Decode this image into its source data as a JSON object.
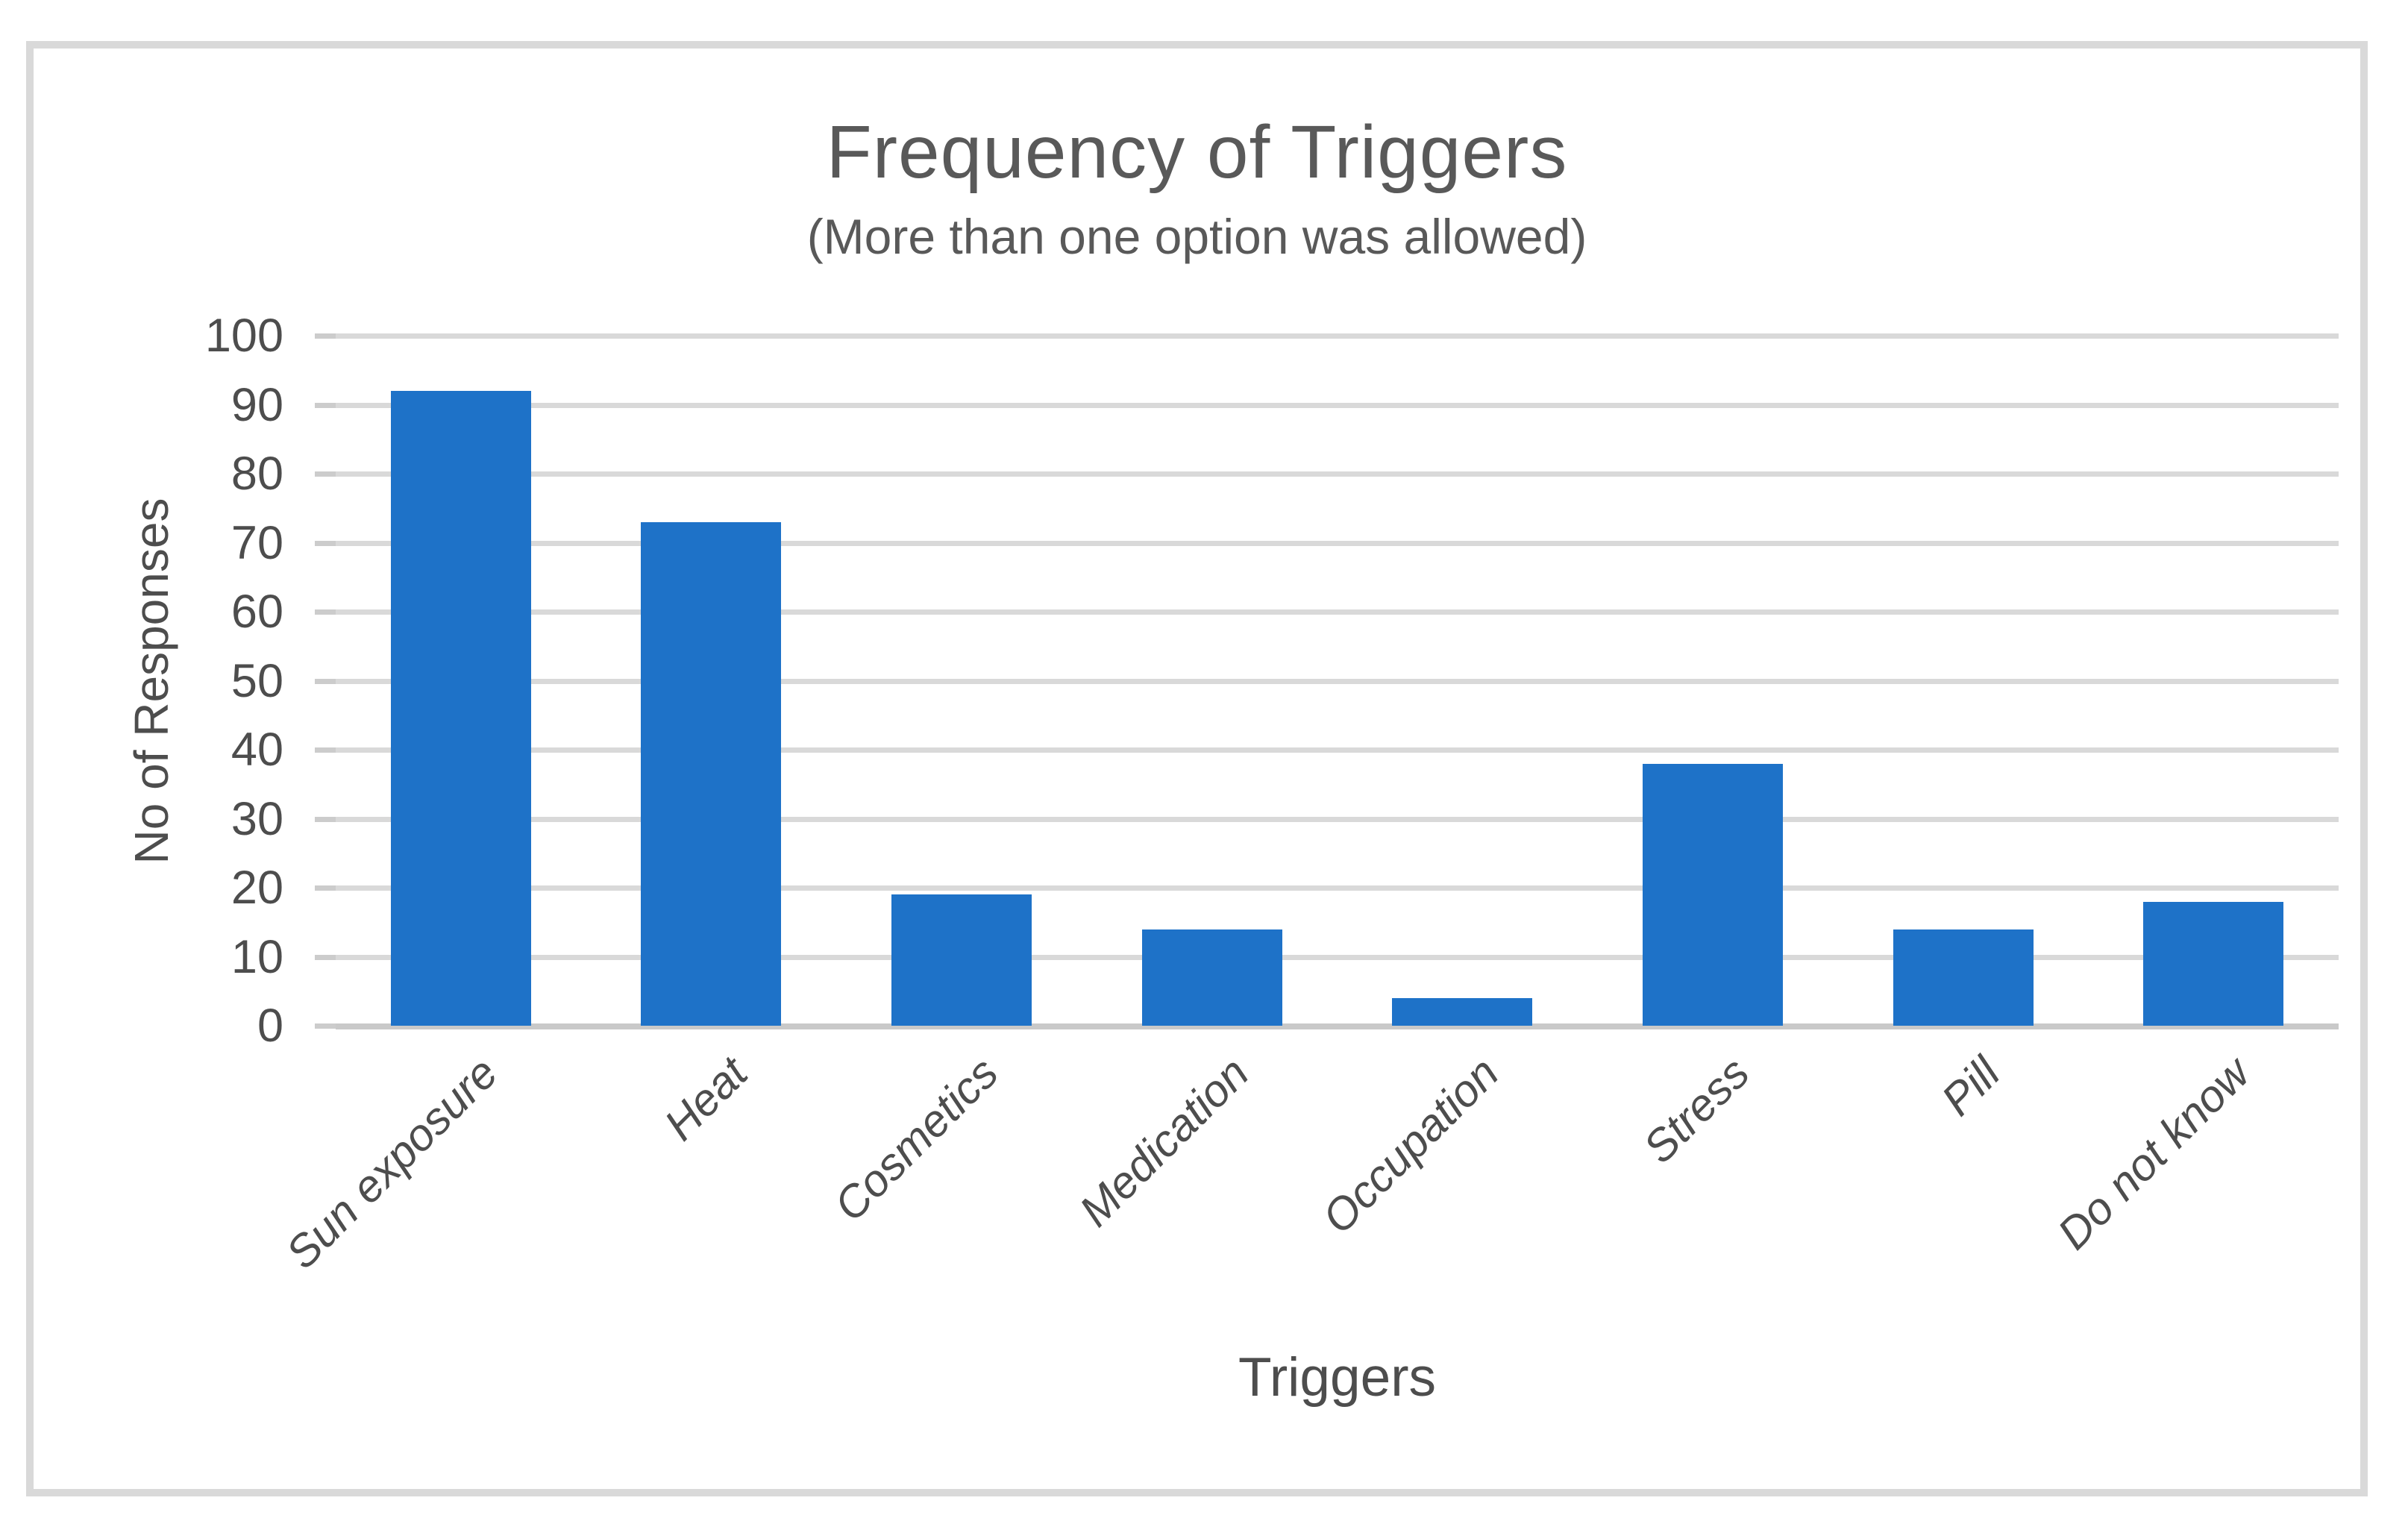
{
  "figure": {
    "background": "#ffffff",
    "frame_border_color": "#d9d9d9"
  },
  "chart_data": {
    "type": "bar",
    "title": "Frequency of Triggers",
    "subtitle": "(More than one option was allowed)",
    "xlabel": "Triggers",
    "ylabel": "No of Responses",
    "categories": [
      "Sun exposure",
      "Heat",
      "Cosmetics",
      "Medication",
      "Occupation",
      "Stress",
      "Pill",
      "Do not know"
    ],
    "values": [
      92,
      73,
      19,
      14,
      4,
      38,
      14,
      18
    ],
    "ylim": [
      0,
      100
    ],
    "ytick_step": 10,
    "yticks": [
      0,
      10,
      20,
      30,
      40,
      50,
      60,
      70,
      80,
      90,
      100
    ],
    "grid": "horizontal",
    "legend_position": "none",
    "bar_color": "#1e72c8",
    "gridline_color": "#d9d9d9",
    "axis_line_color": "#c9c9c9",
    "title_color": "#595959",
    "tick_text_color": "#4d4d4d"
  }
}
